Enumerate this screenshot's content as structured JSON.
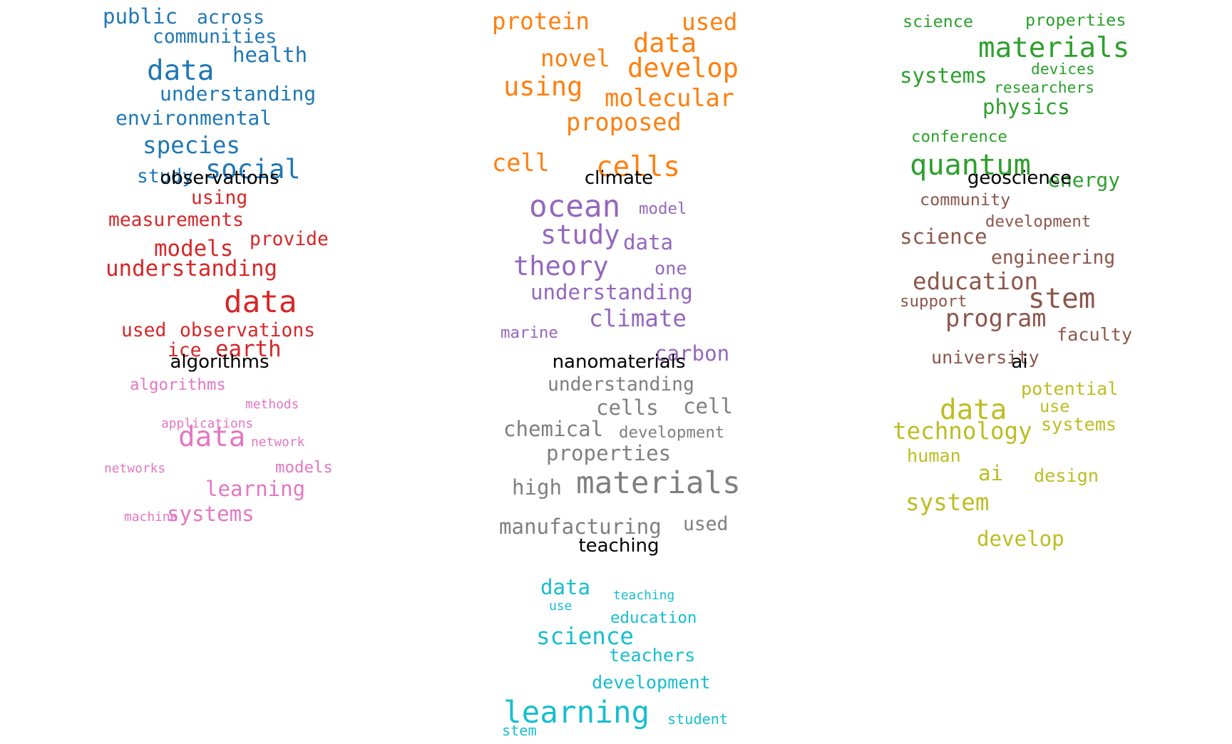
{
  "chart_data": {
    "type": "wordcloud",
    "panels": [
      {
        "topic": "observations",
        "color": "#d62728",
        "words": [
          {
            "text": "using",
            "weight": 0.47
          },
          {
            "text": "measurements",
            "weight": 0.47
          },
          {
            "text": "provide",
            "weight": 0.47
          },
          {
            "text": "models",
            "weight": 0.55
          },
          {
            "text": "understanding",
            "weight": 0.55
          },
          {
            "text": "data",
            "weight": 0.76
          },
          {
            "text": "used",
            "weight": 0.47
          },
          {
            "text": "observations",
            "weight": 0.47
          },
          {
            "text": "ice",
            "weight": 0.47
          },
          {
            "text": "earth",
            "weight": 0.55
          }
        ]
      },
      {
        "topic": "algorithms",
        "color": "#e377c2",
        "words": [
          {
            "text": "algorithms",
            "weight": 0.4
          },
          {
            "text": "methods",
            "weight": 0.32
          },
          {
            "text": "applications",
            "weight": 0.32
          },
          {
            "text": "data",
            "weight": 0.7
          },
          {
            "text": "network",
            "weight": 0.32
          },
          {
            "text": "networks",
            "weight": 0.32
          },
          {
            "text": "models",
            "weight": 0.4
          },
          {
            "text": "learning",
            "weight": 0.52
          },
          {
            "text": "machine",
            "weight": 0.32
          },
          {
            "text": "systems",
            "weight": 0.52
          }
        ]
      },
      {
        "topic": "climate",
        "color": "#9467bd",
        "words": [
          {
            "text": "ocean",
            "weight": 0.76
          },
          {
            "text": "model",
            "weight": 0.4
          },
          {
            "text": "study",
            "weight": 0.66
          },
          {
            "text": "data",
            "weight": 0.52
          },
          {
            "text": "theory",
            "weight": 0.66
          },
          {
            "text": "one",
            "weight": 0.45
          },
          {
            "text": "understanding",
            "weight": 0.52
          },
          {
            "text": "climate",
            "weight": 0.58
          },
          {
            "text": "marine",
            "weight": 0.4
          },
          {
            "text": "carbon",
            "weight": 0.52
          }
        ]
      },
      {
        "topic": "nanomaterials",
        "color": "#7f7f7f",
        "words": [
          {
            "text": "understanding",
            "weight": 0.47
          },
          {
            "text": "cells",
            "weight": 0.52
          },
          {
            "text": "cell",
            "weight": 0.52
          },
          {
            "text": "chemical",
            "weight": 0.52
          },
          {
            "text": "development",
            "weight": 0.4
          },
          {
            "text": "properties",
            "weight": 0.52
          },
          {
            "text": "high",
            "weight": 0.52
          },
          {
            "text": "materials",
            "weight": 0.76
          },
          {
            "text": "manufacturing",
            "weight": 0.52
          },
          {
            "text": "used",
            "weight": 0.47
          }
        ]
      },
      {
        "topic": "teaching",
        "color": "#17becf",
        "words": [
          {
            "text": "data",
            "weight": 0.52
          },
          {
            "text": "teaching",
            "weight": 0.32
          },
          {
            "text": "use",
            "weight": 0.32
          },
          {
            "text": "education",
            "weight": 0.4
          },
          {
            "text": "science",
            "weight": 0.58
          },
          {
            "text": "teachers",
            "weight": 0.45
          },
          {
            "text": "development",
            "weight": 0.45
          },
          {
            "text": "learning",
            "weight": 0.76
          },
          {
            "text": "student",
            "weight": 0.36
          },
          {
            "text": "stem",
            "weight": 0.36
          }
        ]
      },
      {
        "topic": "geoscience",
        "color": "#8c564b",
        "words": [
          {
            "text": "community",
            "weight": 0.42
          },
          {
            "text": "development",
            "weight": 0.4
          },
          {
            "text": "science",
            "weight": 0.52
          },
          {
            "text": "engineering",
            "weight": 0.47
          },
          {
            "text": "education",
            "weight": 0.58
          },
          {
            "text": "support",
            "weight": 0.4
          },
          {
            "text": "stem",
            "weight": 0.7
          },
          {
            "text": "program",
            "weight": 0.6
          },
          {
            "text": "faculty",
            "weight": 0.45
          },
          {
            "text": "university",
            "weight": 0.45
          }
        ]
      },
      {
        "topic": "ai",
        "color": "#bcbd22",
        "words": [
          {
            "text": "potential",
            "weight": 0.45
          },
          {
            "text": "data",
            "weight": 0.7
          },
          {
            "text": "use",
            "weight": 0.42
          },
          {
            "text": "systems",
            "weight": 0.45
          },
          {
            "text": "technology",
            "weight": 0.58
          },
          {
            "text": "human",
            "weight": 0.45
          },
          {
            "text": "ai",
            "weight": 0.52
          },
          {
            "text": "design",
            "weight": 0.45
          },
          {
            "text": "system",
            "weight": 0.58
          },
          {
            "text": "develop",
            "weight": 0.52
          }
        ]
      },
      {
        "topic": "",
        "color": "#1f77b4",
        "words": [
          {
            "text": "public",
            "weight": 0.52
          },
          {
            "text": "across",
            "weight": 0.47
          },
          {
            "text": "communities",
            "weight": 0.47
          },
          {
            "text": "health",
            "weight": 0.52
          },
          {
            "text": "data",
            "weight": 0.7
          },
          {
            "text": "understanding",
            "weight": 0.5
          },
          {
            "text": "environmental",
            "weight": 0.5
          },
          {
            "text": "species",
            "weight": 0.58
          },
          {
            "text": "study",
            "weight": 0.47
          },
          {
            "text": "social",
            "weight": 0.66
          }
        ]
      },
      {
        "topic": "",
        "color": "#ff7f0e",
        "words": [
          {
            "text": "protein",
            "weight": 0.58
          },
          {
            "text": "used",
            "weight": 0.58
          },
          {
            "text": "data",
            "weight": 0.66
          },
          {
            "text": "novel",
            "weight": 0.58
          },
          {
            "text": "develop",
            "weight": 0.66
          },
          {
            "text": "using",
            "weight": 0.66
          },
          {
            "text": "molecular",
            "weight": 0.6
          },
          {
            "text": "proposed",
            "weight": 0.6
          },
          {
            "text": "cell",
            "weight": 0.6
          },
          {
            "text": "cells",
            "weight": 0.7
          }
        ]
      },
      {
        "topic": "",
        "color": "#2ca02c",
        "words": [
          {
            "text": "science",
            "weight": 0.42
          },
          {
            "text": "properties",
            "weight": 0.42
          },
          {
            "text": "materials",
            "weight": 0.7
          },
          {
            "text": "devices",
            "weight": 0.38
          },
          {
            "text": "systems",
            "weight": 0.52
          },
          {
            "text": "researchers",
            "weight": 0.38
          },
          {
            "text": "physics",
            "weight": 0.52
          },
          {
            "text": "conference",
            "weight": 0.4
          },
          {
            "text": "quantum",
            "weight": 0.72
          },
          {
            "text": "energy",
            "weight": 0.5
          }
        ]
      }
    ]
  }
}
